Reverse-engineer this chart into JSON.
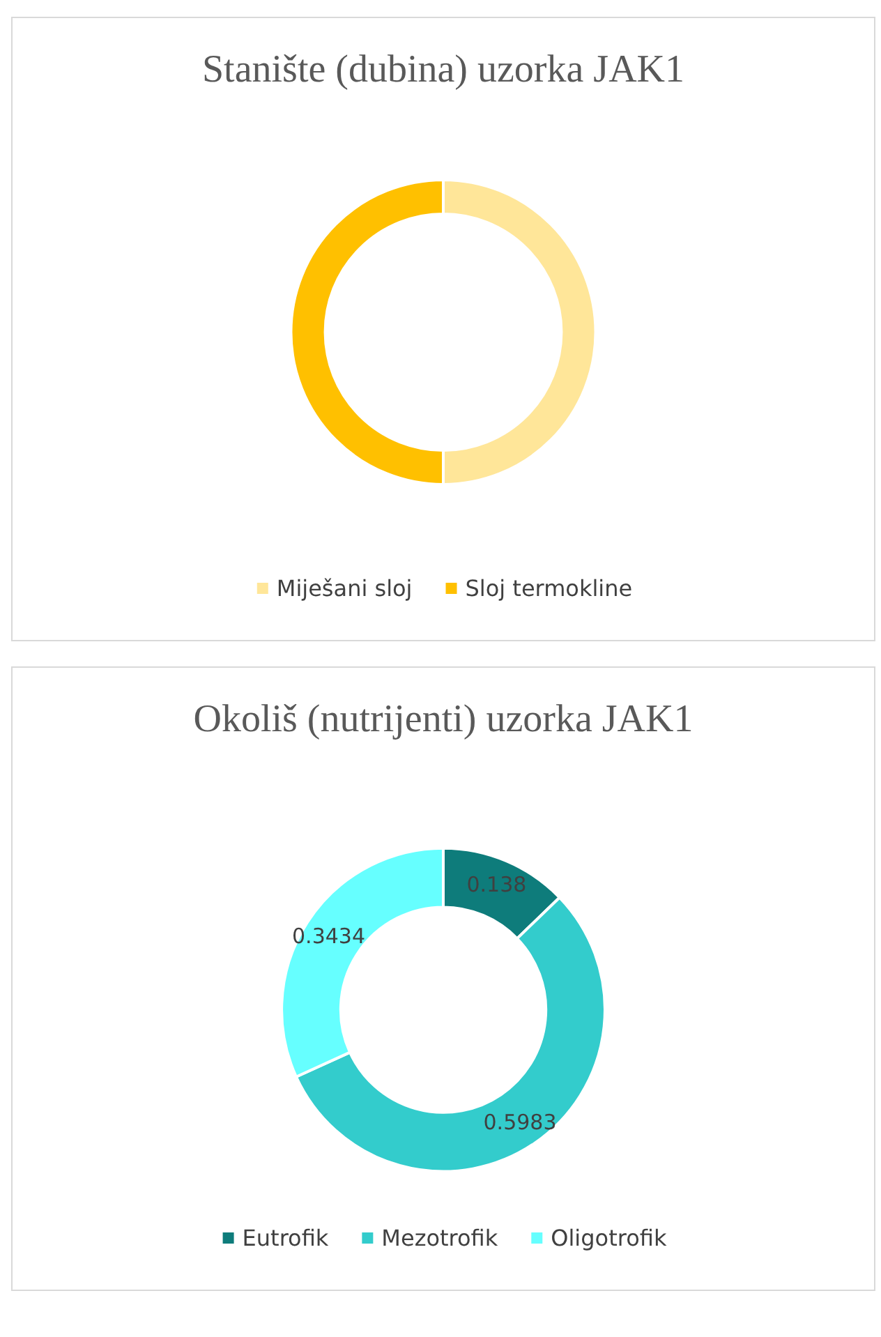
{
  "chart_data": [
    {
      "type": "donut",
      "title": "Stanište (dubina) uzorka JAK1",
      "categories": [
        "Miješani sloj",
        "Sloj termokline"
      ],
      "values": [
        50,
        50
      ],
      "colors": [
        "#ffe699",
        "#ffc000"
      ],
      "legend": "bottom"
    },
    {
      "type": "donut",
      "title": "Okoliš (nutrijenti) uzorka JAK1",
      "categories": [
        "Eutrofik",
        "Mezotrofik",
        "Oligotrofik"
      ],
      "values": [
        0.138,
        0.5983,
        0.3434
      ],
      "colors": [
        "#0e7c7b",
        "#33cccc",
        "#66ffff"
      ],
      "legend": "bottom",
      "data_labels": true
    }
  ]
}
